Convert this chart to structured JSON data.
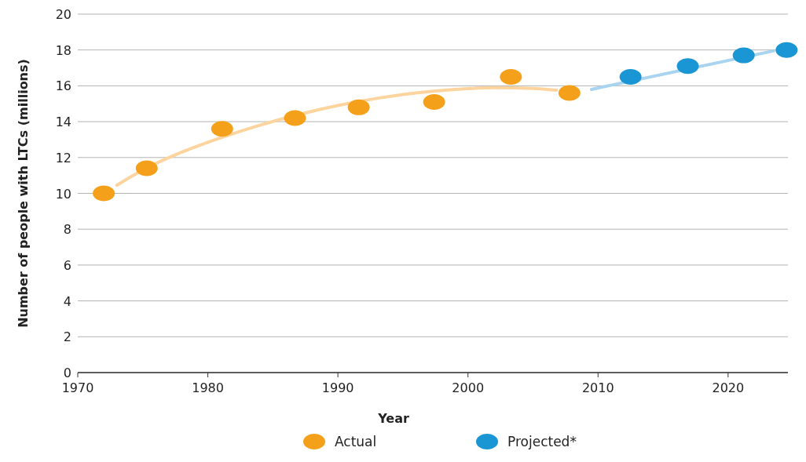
{
  "chart_data": {
    "type": "scatter",
    "xlabel": "Year",
    "ylabel": "Number of people with LTCs (millions)",
    "xlim": [
      1970,
      2024.6
    ],
    "xticks": [
      1970,
      1980,
      1990,
      2000,
      2010,
      2020
    ],
    "ylim": [
      0,
      20
    ],
    "yticks": [
      0,
      2,
      4,
      6,
      8,
      10,
      12,
      14,
      16,
      18,
      20
    ],
    "grid": "y",
    "legend": "bottom",
    "marker": "circle",
    "series": [
      {
        "type": "line",
        "color": "#fdd49e",
        "marker": "none",
        "x": [
          1973,
          1975,
          1978,
          1981,
          1984,
          1987,
          1990,
          1993,
          1996,
          1999,
          2002,
          2005,
          2006.8
        ],
        "values": [
          10.45,
          11.3,
          12.3,
          13.1,
          13.8,
          14.4,
          14.9,
          15.3,
          15.6,
          15.8,
          15.9,
          15.85,
          15.75
        ]
      },
      {
        "type": "line",
        "color": "#a8d4ef",
        "marker": "none",
        "x": [
          2009.5,
          2023.5
        ],
        "values": [
          15.8,
          17.95
        ]
      },
      {
        "name": "Actual",
        "color": "#f5a01a",
        "x": [
          1972,
          1975.3,
          1981.1,
          1986.7,
          1991.6,
          1997.4,
          2003.3,
          2007.8
        ],
        "values": [
          10.0,
          11.4,
          13.6,
          14.2,
          14.8,
          15.1,
          16.5,
          15.6
        ]
      },
      {
        "name": "Projected*",
        "color": "#1a96d4",
        "x": [
          2012.5,
          2016.9,
          2021.2,
          2024.5
        ],
        "values": [
          16.5,
          17.1,
          17.7,
          18.0
        ]
      }
    ]
  }
}
